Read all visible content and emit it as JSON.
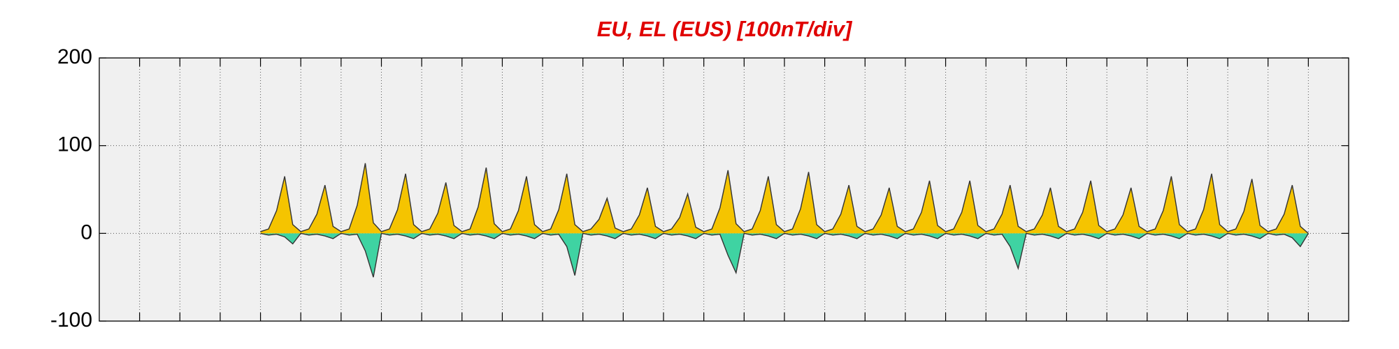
{
  "chart_data": {
    "type": "area",
    "title": "EU, EL (EUS)  [100nT/div]",
    "title_color": "#e00000",
    "x": [
      4,
      4.2,
      4.4,
      4.6,
      4.8,
      5,
      5.2,
      5.4,
      5.6,
      5.8,
      6,
      6.2,
      6.4,
      6.6,
      6.8,
      7,
      7.2,
      7.4,
      7.6,
      7.8,
      8,
      8.2,
      8.4,
      8.6,
      8.8,
      9,
      9.2,
      9.4,
      9.6,
      9.8,
      10,
      10.2,
      10.4,
      10.6,
      10.8,
      11,
      11.2,
      11.4,
      11.6,
      11.8,
      12,
      12.2,
      12.4,
      12.6,
      12.8,
      13,
      13.2,
      13.4,
      13.6,
      13.8,
      14,
      14.2,
      14.4,
      14.6,
      14.8,
      15,
      15.2,
      15.4,
      15.6,
      15.8,
      16,
      16.2,
      16.4,
      16.6,
      16.8,
      17,
      17.2,
      17.4,
      17.6,
      17.8,
      18,
      18.2,
      18.4,
      18.6,
      18.8,
      19,
      19.2,
      19.4,
      19.6,
      19.8,
      20,
      20.2,
      20.4,
      20.6,
      20.8,
      21,
      21.2,
      21.4,
      21.6,
      21.8,
      22,
      22.2,
      22.4,
      22.6,
      22.8,
      23,
      23.2,
      23.4,
      23.6,
      23.8,
      24,
      24.2,
      24.4,
      24.6,
      24.8,
      25,
      25.2,
      25.4,
      25.6,
      25.8,
      26,
      26.2,
      26.4,
      26.6,
      26.8,
      27,
      27.2,
      27.4,
      27.6,
      27.8,
      28,
      28.2,
      28.4,
      28.6,
      28.8,
      29,
      29.2,
      29.4,
      29.6,
      29.8,
      30
    ],
    "series": [
      {
        "name": "EU",
        "color": "#f5c400",
        "values": [
          2,
          5,
          26,
          65,
          10,
          2,
          5,
          22,
          55,
          8,
          2,
          5,
          32,
          80,
          12,
          2,
          5,
          27,
          68,
          10,
          2,
          5,
          23,
          58,
          9,
          2,
          5,
          30,
          75,
          11,
          2,
          5,
          26,
          65,
          10,
          2,
          5,
          27,
          68,
          10,
          2,
          5,
          16,
          40,
          6,
          2,
          5,
          21,
          52,
          8,
          2,
          5,
          18,
          45,
          7,
          2,
          5,
          29,
          72,
          11,
          2,
          5,
          26,
          65,
          10,
          2,
          5,
          28,
          70,
          10,
          2,
          5,
          22,
          55,
          8,
          2,
          5,
          21,
          52,
          8,
          2,
          5,
          24,
          60,
          9,
          2,
          5,
          24,
          60,
          9,
          2,
          5,
          22,
          55,
          8,
          2,
          5,
          21,
          52,
          8,
          2,
          5,
          24,
          60,
          9,
          2,
          5,
          21,
          52,
          8,
          2,
          5,
          26,
          65,
          10,
          2,
          5,
          27,
          68,
          10,
          2,
          5,
          25,
          62,
          9,
          2,
          5,
          22,
          55,
          8,
          0
        ]
      },
      {
        "name": "EL",
        "color": "#3fd3a2",
        "values": [
          0,
          -2,
          -1,
          -4,
          -12,
          0,
          -2,
          -1,
          -3,
          -6,
          0,
          -2,
          -1,
          -20,
          -50,
          0,
          -2,
          -1,
          -3,
          -6,
          0,
          -2,
          -1,
          -3,
          -6,
          0,
          -2,
          -1,
          -3,
          -6,
          0,
          -2,
          -1,
          -3,
          -6,
          0,
          -2,
          -1,
          -15,
          -48,
          0,
          -2,
          -1,
          -3,
          -6,
          0,
          -2,
          -1,
          -3,
          -6,
          0,
          -2,
          -1,
          -3,
          -6,
          0,
          -2,
          -1,
          -25,
          -45,
          0,
          -2,
          -1,
          -3,
          -6,
          0,
          -2,
          -1,
          -3,
          -6,
          0,
          -2,
          -1,
          -3,
          -6,
          0,
          -2,
          -1,
          -3,
          -6,
          0,
          -2,
          -1,
          -3,
          -6,
          0,
          -2,
          -1,
          -3,
          -6,
          0,
          -2,
          -1,
          -15,
          -40,
          0,
          -2,
          -1,
          -3,
          -6,
          0,
          -2,
          -1,
          -3,
          -6,
          0,
          -2,
          -1,
          -3,
          -6,
          0,
          -2,
          -1,
          -3,
          -6,
          0,
          -2,
          -1,
          -3,
          -6,
          0,
          -2,
          -1,
          -3,
          -6,
          0,
          -2,
          -1,
          -5,
          -15,
          0
        ]
      }
    ],
    "line_color": "#333333",
    "plot_background": "#f0f0f0",
    "xlim": [
      0,
      31
    ],
    "xticks": [
      1,
      2,
      3,
      4,
      5,
      6,
      7,
      8,
      9,
      10,
      11,
      12,
      13,
      14,
      15,
      16,
      17,
      18,
      19,
      20,
      21,
      22,
      23,
      24,
      25,
      26,
      27,
      28,
      29,
      30
    ],
    "ylim": [
      -100,
      200
    ],
    "yticks": [
      -100,
      0,
      100,
      200
    ],
    "grid": true
  }
}
